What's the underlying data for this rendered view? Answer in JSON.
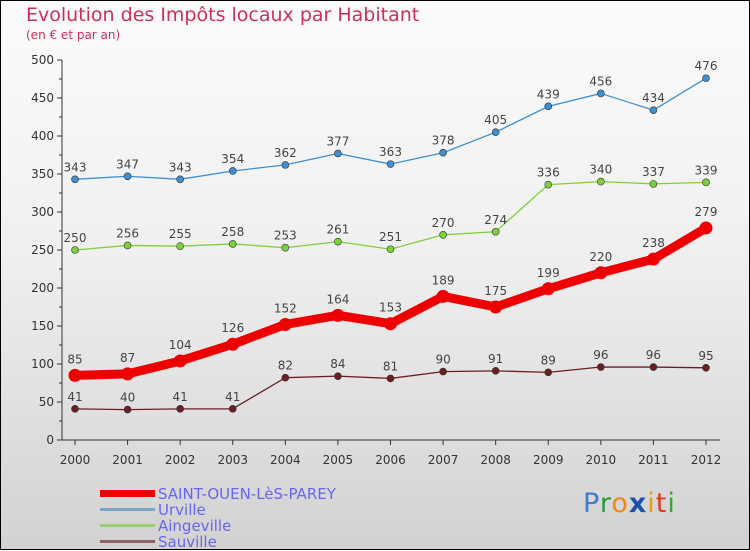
{
  "header": {
    "title": "Evolution des Impôts locaux par Habitant",
    "subtitle": "(en € et par an)"
  },
  "logo": {
    "text": "Proxiti"
  },
  "chart_data": {
    "type": "line",
    "title": "Evolution des Impôts locaux par Habitant",
    "subtitle": "(en € et par an)",
    "xlabel": "",
    "ylabel": "",
    "ylim": [
      0,
      500
    ],
    "yticks": [
      0,
      50,
      100,
      150,
      200,
      250,
      300,
      350,
      400,
      450,
      500
    ],
    "grid": false,
    "legend_position": "bottom-left",
    "x": [
      2000,
      2001,
      2002,
      2003,
      2004,
      2005,
      2006,
      2007,
      2008,
      2009,
      2010,
      2011,
      2012
    ],
    "series": [
      {
        "name": "SAINT-OUEN-LèS-PAREY",
        "color": "#ee0000",
        "values": [
          85,
          87,
          104,
          126,
          152,
          164,
          153,
          189,
          175,
          199,
          220,
          238,
          279
        ]
      },
      {
        "name": "Urville",
        "color": "#3f8fd0",
        "values": [
          343,
          347,
          343,
          354,
          362,
          377,
          363,
          378,
          405,
          439,
          456,
          434,
          476
        ]
      },
      {
        "name": "Aingeville",
        "color": "#7ed03a",
        "values": [
          250,
          256,
          255,
          258,
          253,
          261,
          251,
          270,
          274,
          336,
          340,
          337,
          339
        ]
      },
      {
        "name": "Sauville",
        "color": "#6a2020",
        "values": [
          41,
          40,
          41,
          41,
          82,
          84,
          81,
          90,
          91,
          89,
          96,
          96,
          95
        ]
      }
    ]
  }
}
